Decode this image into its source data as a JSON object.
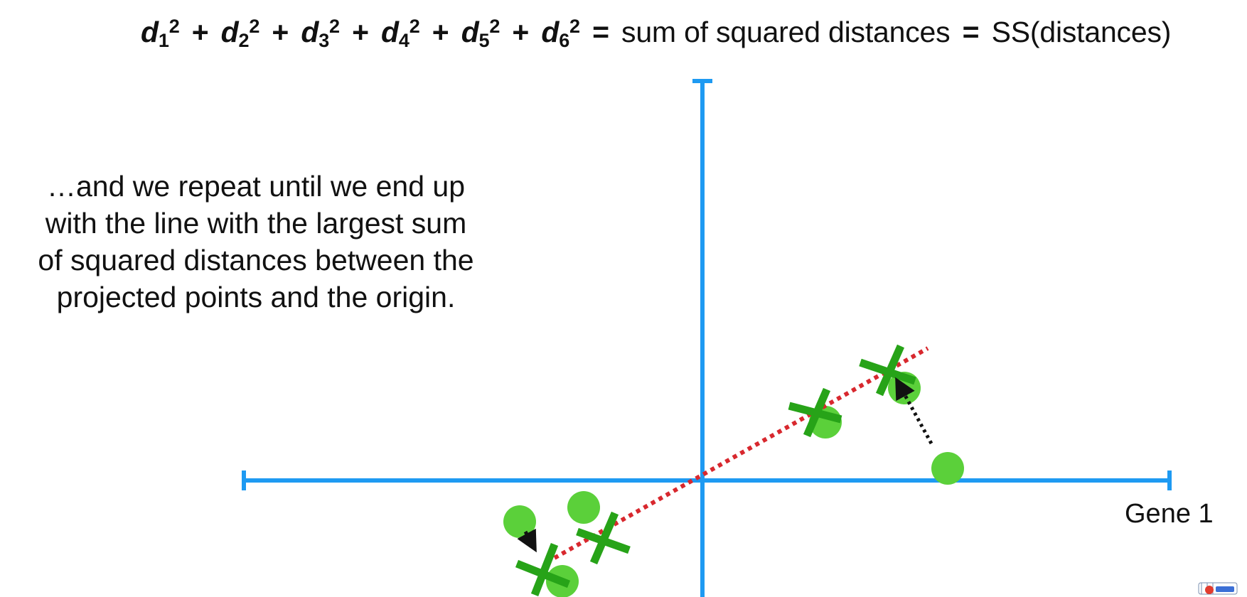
{
  "formula": {
    "terms": [
      {
        "letter": "d",
        "sub": "1",
        "sup": "2"
      },
      {
        "letter": "d",
        "sub": "2",
        "sup": "2"
      },
      {
        "letter": "d",
        "sub": "3",
        "sup": "2"
      },
      {
        "letter": "d",
        "sub": "4",
        "sup": "2"
      },
      {
        "letter": "d",
        "sub": "5",
        "sup": "2"
      },
      {
        "letter": "d",
        "sub": "6",
        "sup": "2"
      }
    ],
    "plus": "+",
    "equals": "=",
    "meaning": "sum of squared distances",
    "abbreviation": "SS(distances)"
  },
  "caption": {
    "lines": [
      "…and we repeat until we end up",
      "with the line with the largest sum",
      "of squared distances between the",
      "projected points and the origin."
    ]
  },
  "axes": {
    "x_label": "Gene 1",
    "axis_color": "#1e9af2"
  },
  "colors": {
    "point": "#5bd03a",
    "cross": "#27a318",
    "fit_line": "#d8282e",
    "projection_arrow": "#111111"
  },
  "icons": {
    "data_point": "green-circle",
    "projected_point": "green-x-mark",
    "logo": "statquest-logo"
  }
}
